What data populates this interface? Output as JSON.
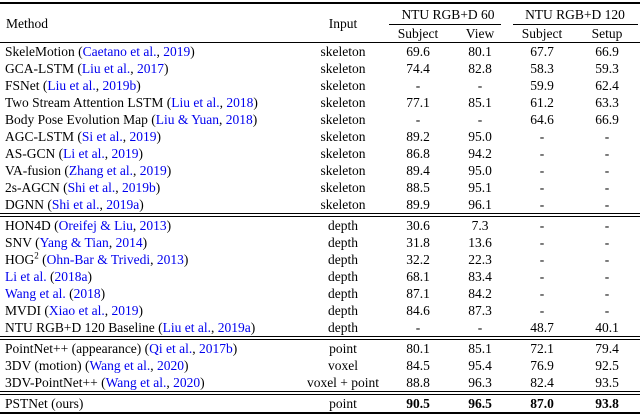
{
  "table": {
    "link_color": "#0000EE",
    "header": {
      "method": "Method",
      "input": "Input",
      "group1": "NTU RGB+D 60",
      "group2": "NTU RGB+D 120",
      "sub1": "Subject",
      "sub2": "View",
      "sub3": "Subject",
      "sub4": "Setup"
    },
    "groups": [
      {
        "rows": [
          {
            "method": [
              [
                "SkeleMotion (",
                0
              ],
              [
                "Caetano et al.",
                1
              ],
              [
                ", ",
                0
              ],
              [
                "2019",
                1
              ],
              [
                ")",
                0
              ]
            ],
            "input": "skeleton",
            "values": [
              "69.6",
              "80.1",
              "67.7",
              "66.9"
            ],
            "bold": false
          },
          {
            "method": [
              [
                "GCA-LSTM (",
                0
              ],
              [
                "Liu et al.",
                1
              ],
              [
                ", ",
                0
              ],
              [
                "2017",
                1
              ],
              [
                ")",
                0
              ]
            ],
            "input": "skeleton",
            "values": [
              "74.4",
              "82.8",
              "58.3",
              "59.3"
            ],
            "bold": false
          },
          {
            "method": [
              [
                "FSNet (",
                0
              ],
              [
                "Liu et al.",
                1
              ],
              [
                ", ",
                0
              ],
              [
                "2019b",
                1
              ],
              [
                ")",
                0
              ]
            ],
            "input": "skeleton",
            "values": [
              "-",
              "-",
              "59.9",
              "62.4"
            ],
            "bold": false
          },
          {
            "method": [
              [
                "Two Stream Attention LSTM (",
                0
              ],
              [
                "Liu et al.",
                1
              ],
              [
                ", ",
                0
              ],
              [
                "2018",
                1
              ],
              [
                ")",
                0
              ]
            ],
            "input": "skeleton",
            "values": [
              "77.1",
              "85.1",
              "61.2",
              "63.3"
            ],
            "bold": false
          },
          {
            "method": [
              [
                "Body Pose Evolution Map (",
                0
              ],
              [
                "Liu & Yuan",
                1
              ],
              [
                ", ",
                0
              ],
              [
                "2018",
                1
              ],
              [
                ")",
                0
              ]
            ],
            "input": "skeleton",
            "values": [
              "-",
              "-",
              "64.6",
              "66.9"
            ],
            "bold": false
          },
          {
            "method": [
              [
                "AGC-LSTM (",
                0
              ],
              [
                "Si et al.",
                1
              ],
              [
                ", ",
                0
              ],
              [
                "2019",
                1
              ],
              [
                ")",
                0
              ]
            ],
            "input": "skeleton",
            "values": [
              "89.2",
              "95.0",
              "-",
              "-"
            ],
            "bold": false
          },
          {
            "method": [
              [
                "AS-GCN (",
                0
              ],
              [
                "Li et al.",
                1
              ],
              [
                ", ",
                0
              ],
              [
                "2019",
                1
              ],
              [
                ")",
                0
              ]
            ],
            "input": "skeleton",
            "values": [
              "86.8",
              "94.2",
              "-",
              "-"
            ],
            "bold": false
          },
          {
            "method": [
              [
                "VA-fusion (",
                0
              ],
              [
                "Zhang et al.",
                1
              ],
              [
                ", ",
                0
              ],
              [
                "2019",
                1
              ],
              [
                ")",
                0
              ]
            ],
            "input": "skeleton",
            "values": [
              "89.4",
              "95.0",
              "-",
              "-"
            ],
            "bold": false
          },
          {
            "method": [
              [
                "2s-AGCN (",
                0
              ],
              [
                "Shi et al.",
                1
              ],
              [
                ", ",
                0
              ],
              [
                "2019b",
                1
              ],
              [
                ")",
                0
              ]
            ],
            "input": "skeleton",
            "values": [
              "88.5",
              "95.1",
              "-",
              "-"
            ],
            "bold": false
          },
          {
            "method": [
              [
                "DGNN (",
                0
              ],
              [
                "Shi et al.",
                1
              ],
              [
                ", ",
                0
              ],
              [
                "2019a",
                1
              ],
              [
                ")",
                0
              ]
            ],
            "input": "skeleton",
            "values": [
              "89.9",
              "96.1",
              "-",
              "-"
            ],
            "bold": false
          }
        ]
      },
      {
        "rows": [
          {
            "method": [
              [
                "HON4D (",
                0
              ],
              [
                "Oreifej & Liu",
                1
              ],
              [
                ", ",
                0
              ],
              [
                "2013",
                1
              ],
              [
                ")",
                0
              ]
            ],
            "input": "depth",
            "values": [
              "30.6",
              "7.3",
              "-",
              "-"
            ],
            "bold": false
          },
          {
            "method": [
              [
                "SNV (",
                0
              ],
              [
                "Yang & Tian",
                1
              ],
              [
                ", ",
                0
              ],
              [
                "2014",
                1
              ],
              [
                ")",
                0
              ]
            ],
            "input": "depth",
            "values": [
              "31.8",
              "13.6",
              "-",
              "-"
            ],
            "bold": false
          },
          {
            "method": [
              [
                "HOG",
                0
              ],
              [
                "2",
                2
              ],
              [
                " (",
                0
              ],
              [
                "Ohn-Bar & Trivedi",
                1
              ],
              [
                ", ",
                0
              ],
              [
                "2013",
                1
              ],
              [
                ")",
                0
              ]
            ],
            "input": "depth",
            "values": [
              "32.2",
              "22.3",
              "-",
              "-"
            ],
            "bold": false
          },
          {
            "method": [
              [
                "Li et al.",
                1
              ],
              [
                " (",
                0
              ],
              [
                "2018a",
                1
              ],
              [
                ")",
                0
              ]
            ],
            "input": "depth",
            "values": [
              "68.1",
              "83.4",
              "-",
              "-"
            ],
            "bold": false
          },
          {
            "method": [
              [
                "Wang et al.",
                1
              ],
              [
                " (",
                0
              ],
              [
                "2018",
                1
              ],
              [
                ")",
                0
              ]
            ],
            "input": "depth",
            "values": [
              "87.1",
              "84.2",
              "-",
              "-"
            ],
            "bold": false
          },
          {
            "method": [
              [
                "MVDI (",
                0
              ],
              [
                "Xiao et al.",
                1
              ],
              [
                ", ",
                0
              ],
              [
                "2019",
                1
              ],
              [
                ")",
                0
              ]
            ],
            "input": "depth",
            "values": [
              "84.6",
              "87.3",
              "-",
              "-"
            ],
            "bold": false
          },
          {
            "method": [
              [
                "NTU RGB+D 120 Baseline (",
                0
              ],
              [
                "Liu et al.",
                1
              ],
              [
                ", ",
                0
              ],
              [
                "2019a",
                1
              ],
              [
                ")",
                0
              ]
            ],
            "input": "depth",
            "values": [
              "-",
              "-",
              "48.7",
              "40.1"
            ],
            "bold": false
          }
        ]
      },
      {
        "rows": [
          {
            "method": [
              [
                "PointNet++ (appearance) (",
                0
              ],
              [
                "Qi et al.",
                1
              ],
              [
                ", ",
                0
              ],
              [
                "2017b",
                1
              ],
              [
                ")",
                0
              ]
            ],
            "input": "point",
            "values": [
              "80.1",
              "85.1",
              "72.1",
              "79.4"
            ],
            "bold": false
          },
          {
            "method": [
              [
                "3DV (motion) (",
                0
              ],
              [
                "Wang et al.",
                1
              ],
              [
                ", ",
                0
              ],
              [
                "2020",
                1
              ],
              [
                ")",
                0
              ]
            ],
            "input": "voxel",
            "values": [
              "84.5",
              "95.4",
              "76.9",
              "92.5"
            ],
            "bold": false
          },
          {
            "method": [
              [
                "3DV-PointNet++ (",
                0
              ],
              [
                "Wang et al.",
                1
              ],
              [
                ", ",
                0
              ],
              [
                "2020",
                1
              ],
              [
                ")",
                0
              ]
            ],
            "input": "voxel + point",
            "values": [
              "88.8",
              "96.3",
              "82.4",
              "93.5"
            ],
            "bold": false
          }
        ]
      },
      {
        "rows": [
          {
            "method": [
              [
                "PSTNet (ours)",
                0
              ]
            ],
            "input": "point",
            "values": [
              "90.5",
              "96.5",
              "87.0",
              "93.8"
            ],
            "bold": true
          }
        ]
      }
    ]
  }
}
